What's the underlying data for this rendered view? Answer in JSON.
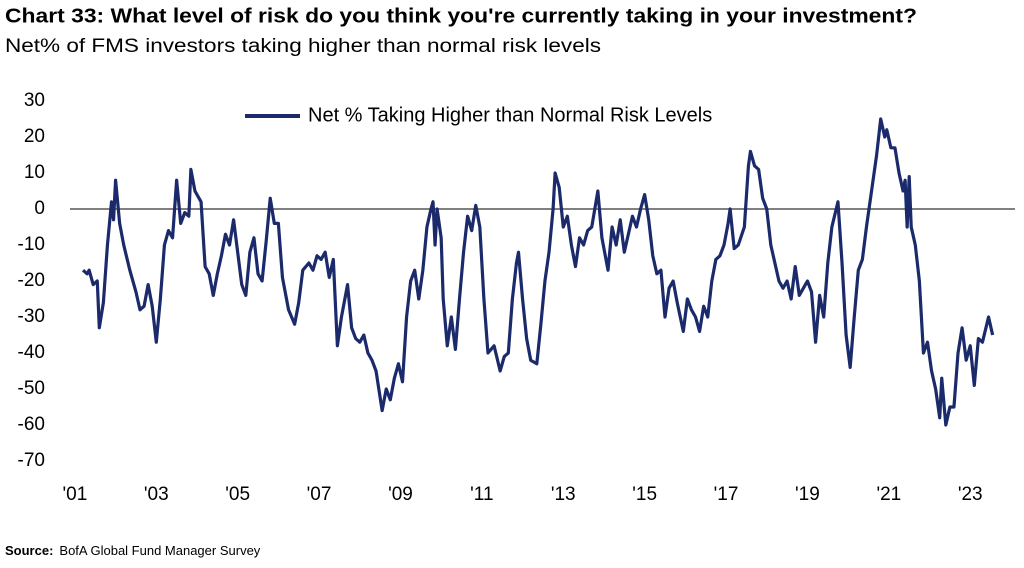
{
  "chart_data": {
    "type": "line",
    "title": "Chart 33: What level of risk do you think you're currently taking in your investment?",
    "subtitle": "Net% of FMS investors taking higher than normal risk levels",
    "source_label": "Source:",
    "source": "BofA Global Fund Manager Survey",
    "legend": "top",
    "zero_line": true,
    "x": [
      2001.2,
      2001.3,
      2001.35,
      2001.45,
      2001.55,
      2001.6,
      2001.7,
      2001.8,
      2001.9,
      2001.95,
      2002.0,
      2002.1,
      2002.2,
      2002.35,
      2002.5,
      2002.6,
      2002.7,
      2002.8,
      2002.9,
      2003.0,
      2003.1,
      2003.2,
      2003.3,
      2003.4,
      2003.5,
      2003.6,
      2003.7,
      2003.8,
      2003.85,
      2003.95,
      2004.1,
      2004.2,
      2004.3,
      2004.4,
      2004.5,
      2004.6,
      2004.7,
      2004.8,
      2004.9,
      2005.0,
      2005.1,
      2005.2,
      2005.3,
      2005.4,
      2005.5,
      2005.6,
      2005.7,
      2005.8,
      2005.9,
      2006.0,
      2006.1,
      2006.25,
      2006.4,
      2006.5,
      2006.6,
      2006.75,
      2006.85,
      2006.95,
      2007.05,
      2007.15,
      2007.25,
      2007.35,
      2007.45,
      2007.55,
      2007.7,
      2007.8,
      2007.9,
      2008.0,
      2008.1,
      2008.2,
      2008.3,
      2008.4,
      2008.55,
      2008.65,
      2008.75,
      2008.85,
      2008.95,
      2009.05,
      2009.15,
      2009.25,
      2009.35,
      2009.45,
      2009.55,
      2009.65,
      2009.75,
      2009.8,
      2009.85,
      2009.9,
      2010.0,
      2010.05,
      2010.15,
      2010.25,
      2010.35,
      2010.45,
      2010.55,
      2010.65,
      2010.75,
      2010.85,
      2010.95,
      2011.05,
      2011.15,
      2011.3,
      2011.45,
      2011.55,
      2011.65,
      2011.75,
      2011.85,
      2011.9,
      2012.0,
      2012.1,
      2012.2,
      2012.35,
      2012.45,
      2012.55,
      2012.65,
      2012.75,
      2012.8,
      2012.9,
      2013.0,
      2013.1,
      2013.2,
      2013.3,
      2013.4,
      2013.5,
      2013.6,
      2013.7,
      2013.85,
      2013.95,
      2014.1,
      2014.2,
      2014.3,
      2014.4,
      2014.5,
      2014.6,
      2014.7,
      2014.8,
      2014.9,
      2015.0,
      2015.1,
      2015.2,
      2015.3,
      2015.4,
      2015.5,
      2015.6,
      2015.7,
      2015.8,
      2015.95,
      2016.05,
      2016.15,
      2016.25,
      2016.35,
      2016.45,
      2016.55,
      2016.65,
      2016.75,
      2016.85,
      2016.95,
      2017.05,
      2017.1,
      2017.2,
      2017.3,
      2017.45,
      2017.55,
      2017.6,
      2017.7,
      2017.8,
      2017.9,
      2018.0,
      2018.1,
      2018.2,
      2018.3,
      2018.4,
      2018.5,
      2018.6,
      2018.7,
      2018.8,
      2018.9,
      2019.0,
      2019.1,
      2019.2,
      2019.3,
      2019.4,
      2019.5,
      2019.6,
      2019.75,
      2019.85,
      2019.95,
      2020.05,
      2020.15,
      2020.25,
      2020.35,
      2020.45,
      2020.6,
      2020.7,
      2020.8,
      2020.9,
      2020.95,
      2021.05,
      2021.15,
      2021.25,
      2021.35,
      2021.4,
      2021.45,
      2021.5,
      2021.55,
      2021.65,
      2021.75,
      2021.85,
      2021.95,
      2022.05,
      2022.15,
      2022.25,
      2022.3,
      2022.4,
      2022.5,
      2022.6,
      2022.7,
      2022.8,
      2022.9,
      2023.0,
      2023.1,
      2023.2,
      2023.3,
      2023.45,
      2023.55
    ],
    "series": [
      {
        "name": "Net % Taking Higher than Normal Risk Levels",
        "color": "#1b2a6b",
        "values": [
          -17,
          -18,
          -17,
          -21,
          -20,
          -33,
          -26,
          -10,
          2,
          -3,
          8,
          -4,
          -10,
          -17,
          -23,
          -28,
          -27,
          -21,
          -27,
          -37,
          -25,
          -10,
          -6,
          -8,
          8,
          -4,
          -1,
          -2,
          11,
          5,
          2,
          -16,
          -18,
          -24,
          -18,
          -13,
          -7,
          -10,
          -3,
          -12,
          -21,
          -24,
          -12,
          -8,
          -18,
          -20,
          -9,
          3,
          -4,
          -4,
          -19,
          -28,
          -32,
          -26,
          -17,
          -15,
          -17,
          -13,
          -14,
          -12,
          -19,
          -14,
          -38,
          -30,
          -21,
          -33,
          -36,
          -37,
          -35,
          -40,
          -42,
          -45,
          -56,
          -50,
          -53,
          -47,
          -43,
          -48,
          -30,
          -20,
          -17,
          -25,
          -17,
          -5,
          0,
          2,
          -10,
          0,
          -8,
          -25,
          -38,
          -30,
          -39,
          -25,
          -12,
          -2,
          -6,
          1,
          -5,
          -25,
          -40,
          -38,
          -45,
          -41,
          -40,
          -25,
          -15,
          -12,
          -25,
          -36,
          -42,
          -43,
          -32,
          -20,
          -12,
          0,
          10,
          6,
          -5,
          -2,
          -10,
          -16,
          -8,
          -10,
          -6,
          -5,
          5,
          -8,
          -17,
          -5,
          -10,
          -3,
          -12,
          -7,
          -2,
          -5,
          0,
          4,
          -3,
          -13,
          -18,
          -17,
          -30,
          -22,
          -20,
          -26,
          -34,
          -25,
          -28,
          -30,
          -34,
          -27,
          -30,
          -20,
          -14,
          -13,
          -10,
          -4,
          0,
          -11,
          -10,
          -5,
          12,
          16,
          12,
          11,
          3,
          0,
          -10,
          -15,
          -20,
          -22,
          -20,
          -25,
          -16,
          -24,
          -22,
          -20,
          -23,
          -37,
          -24,
          -30,
          -15,
          -5,
          2,
          -15,
          -35,
          -44,
          -30,
          -17,
          -14,
          -5,
          7,
          15,
          25,
          20,
          22,
          17,
          17,
          10,
          5,
          8,
          -5,
          9,
          -5,
          -10,
          -20,
          -40,
          -37,
          -45,
          -50,
          -58,
          -47,
          -60,
          -55,
          -55,
          -40,
          -33,
          -42,
          -38,
          -49,
          -36,
          -37,
          -30,
          -35
        ]
      }
    ],
    "xlim": [
      2000.88,
      2024.1
    ],
    "xticks": [
      {
        "value": 2001,
        "label": "'01"
      },
      {
        "value": 2003,
        "label": "'03"
      },
      {
        "value": 2005,
        "label": "'05"
      },
      {
        "value": 2007,
        "label": "'07"
      },
      {
        "value": 2009,
        "label": "'09"
      },
      {
        "value": 2011,
        "label": "'11"
      },
      {
        "value": 2013,
        "label": "'13"
      },
      {
        "value": 2015,
        "label": "'15"
      },
      {
        "value": 2017,
        "label": "'17"
      },
      {
        "value": 2019,
        "label": "'19"
      },
      {
        "value": 2021,
        "label": "'21"
      },
      {
        "value": 2023,
        "label": "'23"
      }
    ],
    "ylim": [
      -70,
      30
    ],
    "yticks": [
      30,
      20,
      10,
      0,
      -10,
      -20,
      -30,
      -40,
      -50,
      -60,
      -70
    ]
  }
}
